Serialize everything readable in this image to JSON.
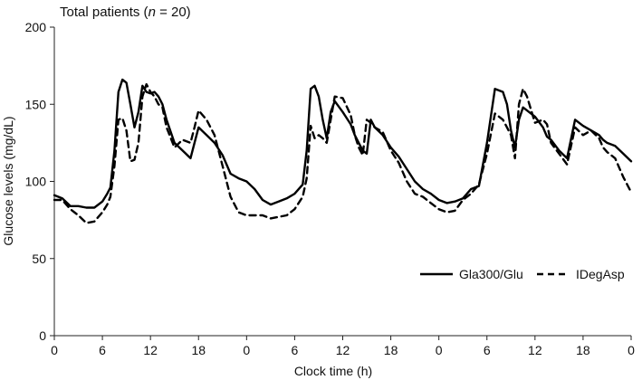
{
  "chart_data": {
    "type": "line",
    "title": "Total patients (n = 20)",
    "title_parts": {
      "prefix": "Total patients (",
      "italic": "n",
      "suffix": " = 20)"
    },
    "xlabel": "Clock time (h)",
    "ylabel": "Glucose levels (mg/dL)",
    "ylim": [
      0,
      200
    ],
    "yticks": [
      0,
      50,
      100,
      150,
      200
    ],
    "xlim": [
      0,
      72
    ],
    "xtick_positions": [
      0,
      6,
      12,
      18,
      24,
      30,
      36,
      42,
      48,
      54,
      60,
      66,
      72
    ],
    "xtick_labels": [
      "0",
      "6",
      "12",
      "18",
      "0",
      "6",
      "12",
      "18",
      "0",
      "6",
      "12",
      "18",
      "0"
    ],
    "grid": false,
    "legend_position": "bottom-right",
    "series": [
      {
        "name": "Gla300/Glu",
        "style": "solid",
        "color": "#000000",
        "x": [
          0,
          1,
          2,
          3,
          4,
          5,
          6,
          6.6,
          7,
          7.5,
          8,
          8.5,
          9,
          9.5,
          10,
          10.5,
          11,
          11.5,
          12,
          12.5,
          13,
          13.5,
          14,
          15,
          16,
          17,
          17.5,
          18,
          19,
          20,
          21,
          22,
          23,
          24,
          25,
          26,
          27,
          28,
          29,
          30,
          31,
          31.5,
          32,
          32.5,
          33,
          33.5,
          34,
          34.5,
          35,
          36,
          37,
          37.5,
          38,
          38.5,
          39,
          39.5,
          40,
          41,
          42,
          43,
          44,
          45,
          46,
          47,
          48,
          49,
          50,
          51,
          52,
          53,
          54,
          55,
          56,
          56.5,
          57,
          57.5,
          58,
          58.5,
          59,
          60,
          61,
          61.5,
          62,
          63,
          64,
          65,
          66,
          67,
          68,
          68.5,
          69,
          70,
          71,
          72
        ],
        "y": [
          91,
          89,
          84,
          84,
          83,
          83,
          87,
          92,
          96,
          120,
          158,
          166,
          164,
          150,
          135,
          145,
          162,
          158,
          157,
          158,
          155,
          150,
          140,
          125,
          120,
          115,
          125,
          135,
          130,
          125,
          117,
          105,
          102,
          100,
          95,
          88,
          85,
          87,
          89,
          92,
          98,
          120,
          160,
          162,
          155,
          140,
          128,
          145,
          152,
          145,
          137,
          130,
          125,
          120,
          118,
          140,
          135,
          130,
          122,
          116,
          108,
          100,
          95,
          92,
          88,
          86,
          87,
          89,
          95,
          97,
          125,
          160,
          158,
          150,
          133,
          122,
          140,
          148,
          146,
          142,
          135,
          129,
          127,
          120,
          115,
          140,
          136,
          133,
          130,
          127,
          125,
          123,
          118,
          113
        ]
      },
      {
        "name": "IDegAsp",
        "style": "dashed",
        "color": "#000000",
        "x": [
          0,
          1,
          2,
          3,
          4,
          5,
          6,
          6.6,
          7,
          7.5,
          8,
          8.5,
          9,
          9.5,
          10,
          10.5,
          11,
          11.5,
          12,
          12.5,
          13,
          13.5,
          14,
          15,
          16,
          17,
          17.5,
          18,
          19,
          20,
          21,
          22,
          23,
          24,
          25,
          26,
          27,
          28,
          29,
          30,
          31,
          31.5,
          32,
          32.5,
          33,
          33.5,
          34,
          34.5,
          35,
          36,
          37,
          37.5,
          38,
          38.5,
          39,
          39.5,
          40,
          41,
          42,
          43,
          44,
          45,
          46,
          47,
          48,
          49,
          50,
          51,
          52,
          53,
          54,
          55,
          56,
          56.5,
          57,
          57.5,
          58,
          58.5,
          59,
          60,
          61,
          61.5,
          62,
          63,
          64,
          65,
          66,
          67,
          68,
          68.5,
          69,
          70,
          71,
          72
        ],
        "y": [
          88,
          88,
          82,
          78,
          73,
          74,
          80,
          85,
          90,
          110,
          140,
          141,
          133,
          113,
          114,
          125,
          155,
          163,
          158,
          155,
          150,
          148,
          135,
          122,
          127,
          125,
          135,
          146,
          140,
          130,
          110,
          90,
          80,
          78,
          78,
          78,
          76,
          77,
          78,
          82,
          90,
          102,
          136,
          128,
          130,
          128,
          125,
          140,
          155,
          154,
          143,
          130,
          122,
          117,
          140,
          138,
          135,
          132,
          120,
          112,
          100,
          92,
          90,
          86,
          82,
          80,
          81,
          88,
          92,
          98,
          118,
          144,
          140,
          135,
          130,
          115,
          150,
          160,
          155,
          138,
          140,
          137,
          125,
          118,
          111,
          135,
          130,
          133,
          128,
          122,
          119,
          115,
          103,
          93
        ]
      }
    ]
  }
}
